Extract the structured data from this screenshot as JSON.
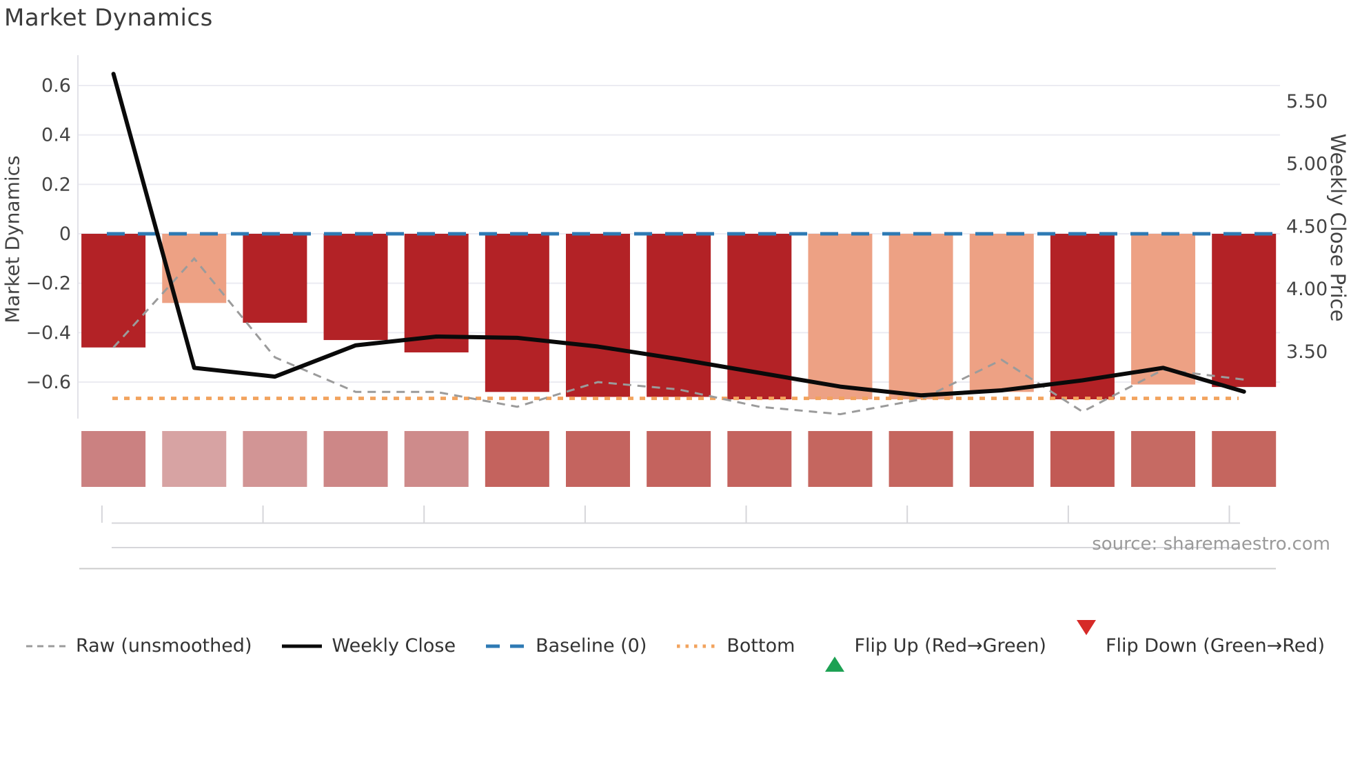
{
  "title": "Market Dynamics",
  "source": "source: sharemaestro.com",
  "left_axis": {
    "label": "Market Dynamics",
    "tick_labels": [
      "0.6",
      "0.4",
      "0.2",
      "0",
      "−0.2",
      "−0.4",
      "−0.6"
    ],
    "tick_values": [
      0.6,
      0.4,
      0.2,
      0,
      -0.2,
      -0.4,
      -0.6
    ]
  },
  "right_axis": {
    "label": "Weekly Close Price",
    "tick_labels": [
      "5.50",
      "5.00",
      "4.50",
      "4.00",
      "3.50"
    ],
    "tick_values": [
      5.5,
      5.0,
      4.5,
      4.0,
      3.5
    ]
  },
  "legend": [
    {
      "label": "Raw (unsmoothed)",
      "marker": "dashed-line",
      "color": "#9b9b9b"
    },
    {
      "label": "Weekly Close",
      "marker": "solid-line",
      "color": "#0a0a0a"
    },
    {
      "label": "Baseline (0)",
      "marker": "long-dash-line",
      "color": "#2e7ab4"
    },
    {
      "label": "Bottom",
      "marker": "dotted-line",
      "color": "#f2a35e"
    },
    {
      "label": "Flip Up (Red→Green)",
      "marker": "triangle-up",
      "color": "#1da153"
    },
    {
      "label": "Flip Down (Green→Red)",
      "marker": "triangle-down",
      "color": "#d62a28"
    }
  ],
  "colors": {
    "bar_deep": "#b32226",
    "bar_light": "#eda184",
    "baseline": "#2e7ab4",
    "bottom": "#f2a35e",
    "raw": "#9b9b9b",
    "weekly": "#0a0a0a",
    "grid": "#ebebf2",
    "spine": "#e2e2e8",
    "axis_gray": "#d6d6da"
  },
  "chart_data": {
    "type": "bar",
    "x": [
      1,
      2,
      3,
      4,
      5,
      6,
      7,
      8,
      9,
      10,
      11,
      12,
      13,
      14,
      15
    ],
    "series": [
      {
        "name": "Market Dynamics (bars)",
        "type": "bar",
        "axis": "left",
        "values": [
          -0.46,
          -0.28,
          -0.36,
          -0.43,
          -0.48,
          -0.64,
          -0.66,
          -0.66,
          -0.67,
          -0.67,
          -0.67,
          -0.64,
          -0.67,
          -0.61,
          -0.62
        ],
        "shade": [
          "deep",
          "light",
          "deep",
          "deep",
          "deep",
          "deep",
          "deep",
          "deep",
          "deep",
          "light",
          "light",
          "light",
          "deep",
          "light",
          "deep"
        ]
      },
      {
        "name": "Raw (unsmoothed)",
        "type": "line",
        "axis": "left",
        "values": [
          -0.46,
          -0.1,
          -0.5,
          -0.64,
          -0.64,
          -0.7,
          -0.6,
          -0.63,
          -0.7,
          -0.73,
          -0.67,
          -0.51,
          -0.72,
          -0.55,
          -0.59
        ]
      },
      {
        "name": "Weekly Close",
        "type": "line",
        "axis": "right",
        "values": [
          5.72,
          3.37,
          3.3,
          3.55,
          3.62,
          3.61,
          3.54,
          3.44,
          3.33,
          3.22,
          3.15,
          3.19,
          3.27,
          3.37,
          3.18
        ]
      },
      {
        "name": "Baseline (0)",
        "type": "hline",
        "axis": "left",
        "value": 0
      },
      {
        "name": "Bottom",
        "type": "hline",
        "axis": "left",
        "value": -0.666
      }
    ],
    "heatmap_strip": {
      "colors": [
        "#cb8181",
        "#d7a3a3",
        "#d29595",
        "#cd8787",
        "#ce8b8b",
        "#c4635e",
        "#c4645f",
        "#c4635e",
        "#c4635e",
        "#c5665f",
        "#c5665f",
        "#c4635e",
        "#c25a55",
        "#c66a63",
        "#c5665f"
      ]
    },
    "title": "Market Dynamics",
    "ylabel_left": "Market Dynamics",
    "ylabel_right": "Weekly Close Price",
    "left_ylim": [
      -0.75,
      0.73
    ],
    "right_ylim": [
      2.96,
      5.87
    ],
    "grid": true,
    "legend_position": "bottom"
  }
}
